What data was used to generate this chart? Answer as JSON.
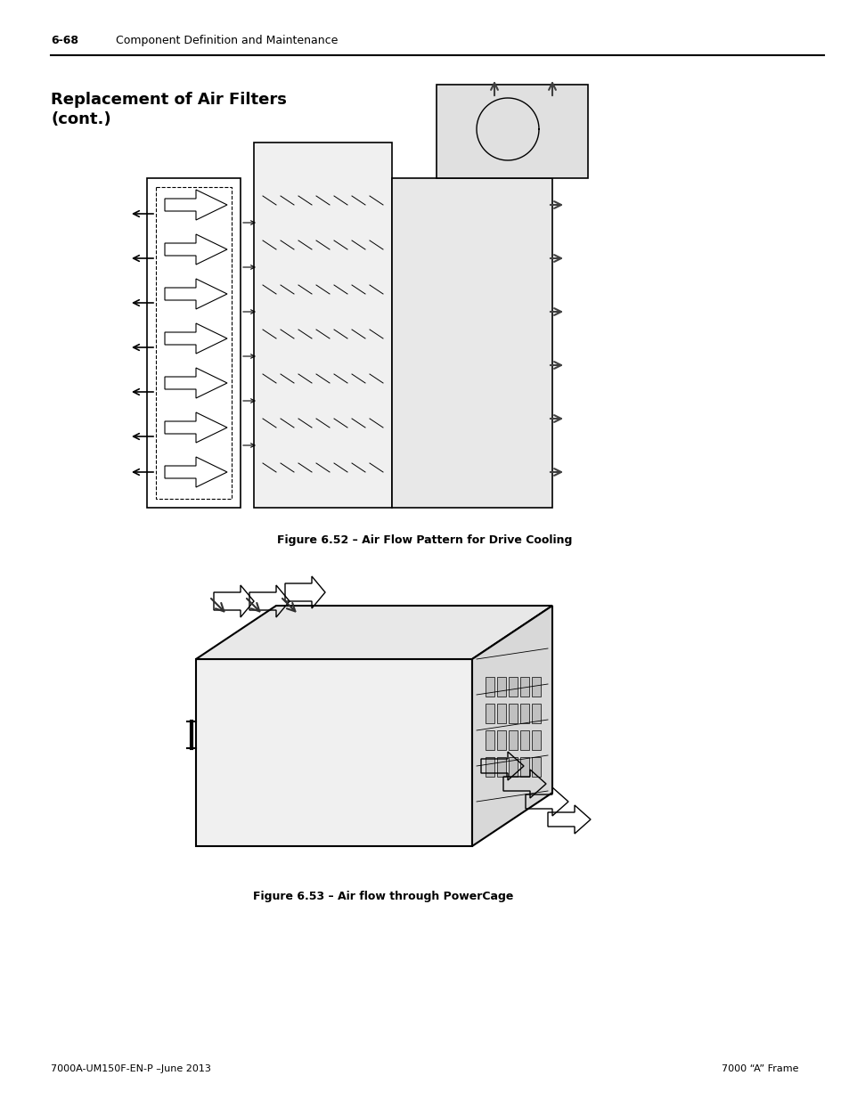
{
  "page_number_left": "6-68",
  "page_header_text": "Component Definition and Maintenance",
  "section_title_line1": "Replacement of Air Filters",
  "section_title_line2": "(cont.)",
  "figure1_caption": "Figure 6.52 – Air Flow Pattern for Drive Cooling",
  "figure2_caption": "Figure 6.53 – Air flow through PowerCage",
  "footer_left": "7000A-UM150F-EN-P –June 2013",
  "footer_right": "7000 “A” Frame",
  "bg_color": "#ffffff",
  "text_color": "#000000",
  "header_line_color": "#000000",
  "title_fontsize": 13,
  "header_fontsize": 9,
  "caption_fontsize": 9,
  "footer_fontsize": 8
}
